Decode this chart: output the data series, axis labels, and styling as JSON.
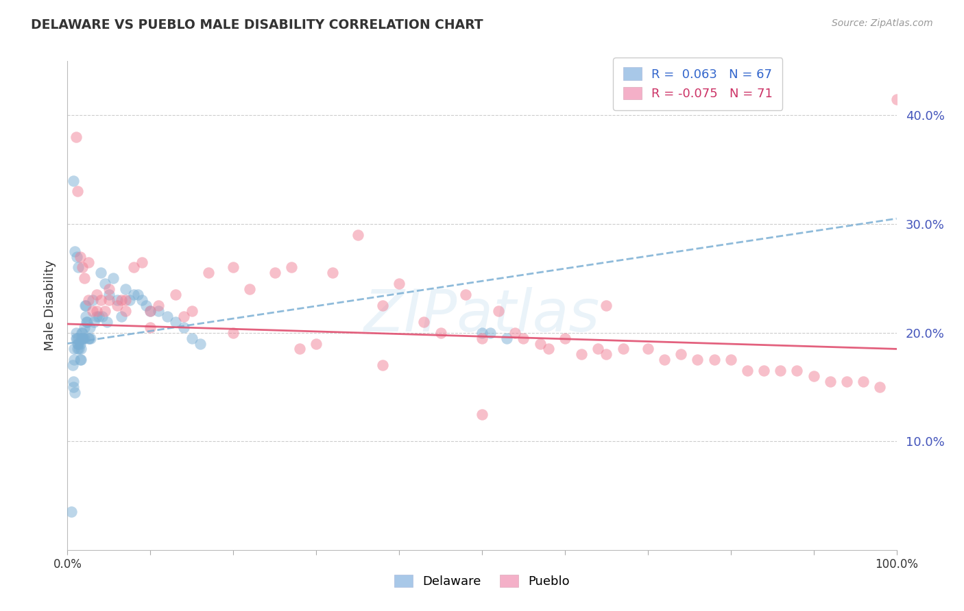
{
  "title": "DELAWARE VS PUEBLO MALE DISABILITY CORRELATION CHART",
  "source": "Source: ZipAtlas.com",
  "ylabel": "Male Disability",
  "watermark": "ZIPatlas",
  "delaware_color": "#7bafd4",
  "pueblo_color": "#f08096",
  "delaware_edge": "#6699cc",
  "pueblo_edge": "#e06080",
  "trend_del_color": "#7bafd4",
  "trend_pue_color": "#e05070",
  "background_color": "#ffffff",
  "grid_color": "#cccccc",
  "xlim": [
    0.0,
    1.0
  ],
  "ylim": [
    0.0,
    0.45
  ],
  "yticks": [
    0.1,
    0.2,
    0.3,
    0.4
  ],
  "ytick_labels": [
    "10.0%",
    "20.0%",
    "30.0%",
    "40.0%"
  ],
  "xticks": [
    0.0,
    0.1,
    0.2,
    0.3,
    0.4,
    0.5,
    0.6,
    0.7,
    0.8,
    0.9,
    1.0
  ],
  "xtick_labels": [
    "0.0%",
    "",
    "",
    "",
    "",
    "",
    "",
    "",
    "",
    "",
    "100.0%"
  ],
  "del_R": 0.063,
  "del_N": 67,
  "pue_R": -0.075,
  "pue_N": 71,
  "del_trend_x0": 0.0,
  "del_trend_y0": 0.19,
  "del_trend_x1": 1.0,
  "del_trend_y1": 0.305,
  "pue_trend_x0": 0.0,
  "pue_trend_y0": 0.208,
  "pue_trend_x1": 1.0,
  "pue_trend_y1": 0.185,
  "del_x": [
    0.005,
    0.006,
    0.007,
    0.007,
    0.008,
    0.008,
    0.009,
    0.01,
    0.01,
    0.011,
    0.012,
    0.012,
    0.013,
    0.013,
    0.014,
    0.015,
    0.015,
    0.016,
    0.016,
    0.017,
    0.017,
    0.018,
    0.018,
    0.019,
    0.02,
    0.02,
    0.021,
    0.022,
    0.022,
    0.023,
    0.024,
    0.025,
    0.026,
    0.027,
    0.028,
    0.03,
    0.032,
    0.035,
    0.038,
    0.04,
    0.042,
    0.045,
    0.048,
    0.05,
    0.055,
    0.06,
    0.065,
    0.07,
    0.075,
    0.08,
    0.085,
    0.09,
    0.095,
    0.1,
    0.11,
    0.12,
    0.13,
    0.14,
    0.15,
    0.16,
    0.5,
    0.51,
    0.53,
    0.007,
    0.009,
    0.011,
    0.013
  ],
  "del_y": [
    0.035,
    0.17,
    0.155,
    0.15,
    0.185,
    0.175,
    0.145,
    0.2,
    0.195,
    0.195,
    0.19,
    0.185,
    0.195,
    0.19,
    0.185,
    0.19,
    0.175,
    0.185,
    0.175,
    0.2,
    0.195,
    0.195,
    0.2,
    0.195,
    0.205,
    0.195,
    0.225,
    0.225,
    0.215,
    0.21,
    0.21,
    0.195,
    0.195,
    0.205,
    0.195,
    0.23,
    0.21,
    0.215,
    0.215,
    0.255,
    0.215,
    0.245,
    0.21,
    0.235,
    0.25,
    0.23,
    0.215,
    0.24,
    0.23,
    0.235,
    0.235,
    0.23,
    0.225,
    0.22,
    0.22,
    0.215,
    0.21,
    0.205,
    0.195,
    0.19,
    0.2,
    0.2,
    0.195,
    0.34,
    0.275,
    0.27,
    0.26
  ],
  "pue_x": [
    0.01,
    0.012,
    0.015,
    0.018,
    0.02,
    0.025,
    0.03,
    0.035,
    0.04,
    0.045,
    0.05,
    0.06,
    0.065,
    0.07,
    0.08,
    0.09,
    0.1,
    0.11,
    0.13,
    0.15,
    0.17,
    0.2,
    0.22,
    0.25,
    0.27,
    0.3,
    0.32,
    0.35,
    0.38,
    0.4,
    0.43,
    0.45,
    0.48,
    0.5,
    0.52,
    0.54,
    0.55,
    0.57,
    0.58,
    0.6,
    0.62,
    0.64,
    0.65,
    0.67,
    0.7,
    0.72,
    0.74,
    0.76,
    0.78,
    0.8,
    0.82,
    0.84,
    0.86,
    0.88,
    0.9,
    0.92,
    0.94,
    0.96,
    0.98,
    1.0,
    0.025,
    0.035,
    0.05,
    0.07,
    0.1,
    0.14,
    0.2,
    0.28,
    0.38,
    0.5,
    0.65
  ],
  "pue_y": [
    0.38,
    0.33,
    0.27,
    0.26,
    0.25,
    0.23,
    0.22,
    0.22,
    0.23,
    0.22,
    0.24,
    0.225,
    0.23,
    0.23,
    0.26,
    0.265,
    0.22,
    0.225,
    0.235,
    0.22,
    0.255,
    0.26,
    0.24,
    0.255,
    0.26,
    0.19,
    0.255,
    0.29,
    0.225,
    0.245,
    0.21,
    0.2,
    0.235,
    0.195,
    0.22,
    0.2,
    0.195,
    0.19,
    0.185,
    0.195,
    0.18,
    0.185,
    0.18,
    0.185,
    0.185,
    0.175,
    0.18,
    0.175,
    0.175,
    0.175,
    0.165,
    0.165,
    0.165,
    0.165,
    0.16,
    0.155,
    0.155,
    0.155,
    0.15,
    0.415,
    0.265,
    0.235,
    0.23,
    0.22,
    0.205,
    0.215,
    0.2,
    0.185,
    0.17,
    0.125,
    0.225
  ]
}
